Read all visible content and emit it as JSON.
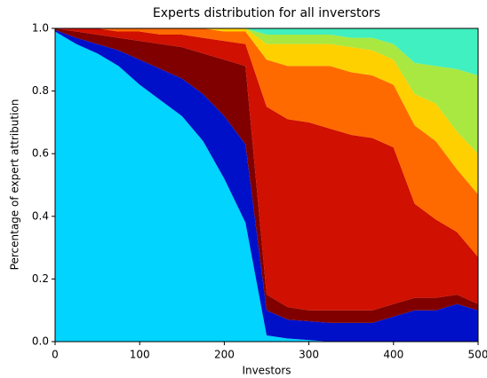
{
  "chart_data": {
    "type": "stacked_area",
    "title": "Experts distribution for all inverstors",
    "xlabel": "Investors",
    "ylabel": "Percentage of expert attribution",
    "x": [
      0,
      25,
      50,
      75,
      100,
      125,
      150,
      175,
      200,
      225,
      250,
      275,
      300,
      325,
      350,
      375,
      400,
      425,
      450,
      475,
      500
    ],
    "series": [
      {
        "color": "#00d4ff",
        "values": [
          0.99,
          0.95,
          0.92,
          0.88,
          0.82,
          0.77,
          0.72,
          0.64,
          0.52,
          0.38,
          0.02,
          0.01,
          0.005,
          0,
          0,
          0,
          0,
          0,
          0,
          0,
          0
        ]
      },
      {
        "color": "#0010c8",
        "values": [
          0.005,
          0.02,
          0.03,
          0.05,
          0.08,
          0.1,
          0.12,
          0.15,
          0.2,
          0.25,
          0.08,
          0.06,
          0.06,
          0.06,
          0.06,
          0.06,
          0.08,
          0.1,
          0.1,
          0.12,
          0.1
        ]
      },
      {
        "color": "#800000",
        "values": [
          0.005,
          0.02,
          0.03,
          0.04,
          0.06,
          0.08,
          0.1,
          0.13,
          0.18,
          0.25,
          0.05,
          0.04,
          0.035,
          0.04,
          0.04,
          0.04,
          0.04,
          0.04,
          0.04,
          0.03,
          0.02
        ]
      },
      {
        "color": "#d01000",
        "values": [
          0,
          0.01,
          0.02,
          0.02,
          0.03,
          0.03,
          0.04,
          0.05,
          0.06,
          0.07,
          0.6,
          0.6,
          0.6,
          0.58,
          0.56,
          0.55,
          0.5,
          0.3,
          0.25,
          0.2,
          0.15
        ]
      },
      {
        "color": "#ff6a00",
        "values": [
          0,
          0,
          0,
          0.01,
          0.01,
          0.02,
          0.02,
          0.03,
          0.03,
          0.04,
          0.15,
          0.17,
          0.18,
          0.2,
          0.2,
          0.2,
          0.2,
          0.25,
          0.25,
          0.2,
          0.2
        ]
      },
      {
        "color": "#ffd000",
        "values": [
          0,
          0,
          0,
          0,
          0,
          0,
          0,
          0,
          0.01,
          0.01,
          0.05,
          0.07,
          0.07,
          0.07,
          0.08,
          0.08,
          0.08,
          0.1,
          0.12,
          0.12,
          0.13
        ]
      },
      {
        "color": "#a8e840",
        "values": [
          0,
          0,
          0,
          0,
          0,
          0,
          0,
          0,
          0,
          0,
          0.03,
          0.03,
          0.03,
          0.03,
          0.03,
          0.04,
          0.05,
          0.1,
          0.12,
          0.2,
          0.25
        ]
      },
      {
        "color": "#40f0c0",
        "values": [
          0,
          0,
          0,
          0,
          0,
          0,
          0,
          0,
          0,
          0,
          0.02,
          0.02,
          0.02,
          0.02,
          0.03,
          0.03,
          0.05,
          0.11,
          0.12,
          0.13,
          0.15
        ]
      }
    ],
    "xlim": [
      0,
      500
    ],
    "ylim": [
      0,
      1
    ],
    "xticks": [
      0,
      100,
      200,
      300,
      400,
      500
    ],
    "yticks": [
      {
        "value": 0,
        "label": "0.0"
      },
      {
        "value": 0.2,
        "label": "0.2"
      },
      {
        "value": 0.4,
        "label": "0.4"
      },
      {
        "value": 0.6,
        "label": "0.6"
      },
      {
        "value": 0.8,
        "label": "0.8"
      },
      {
        "value": 1,
        "label": "1.0"
      }
    ]
  }
}
